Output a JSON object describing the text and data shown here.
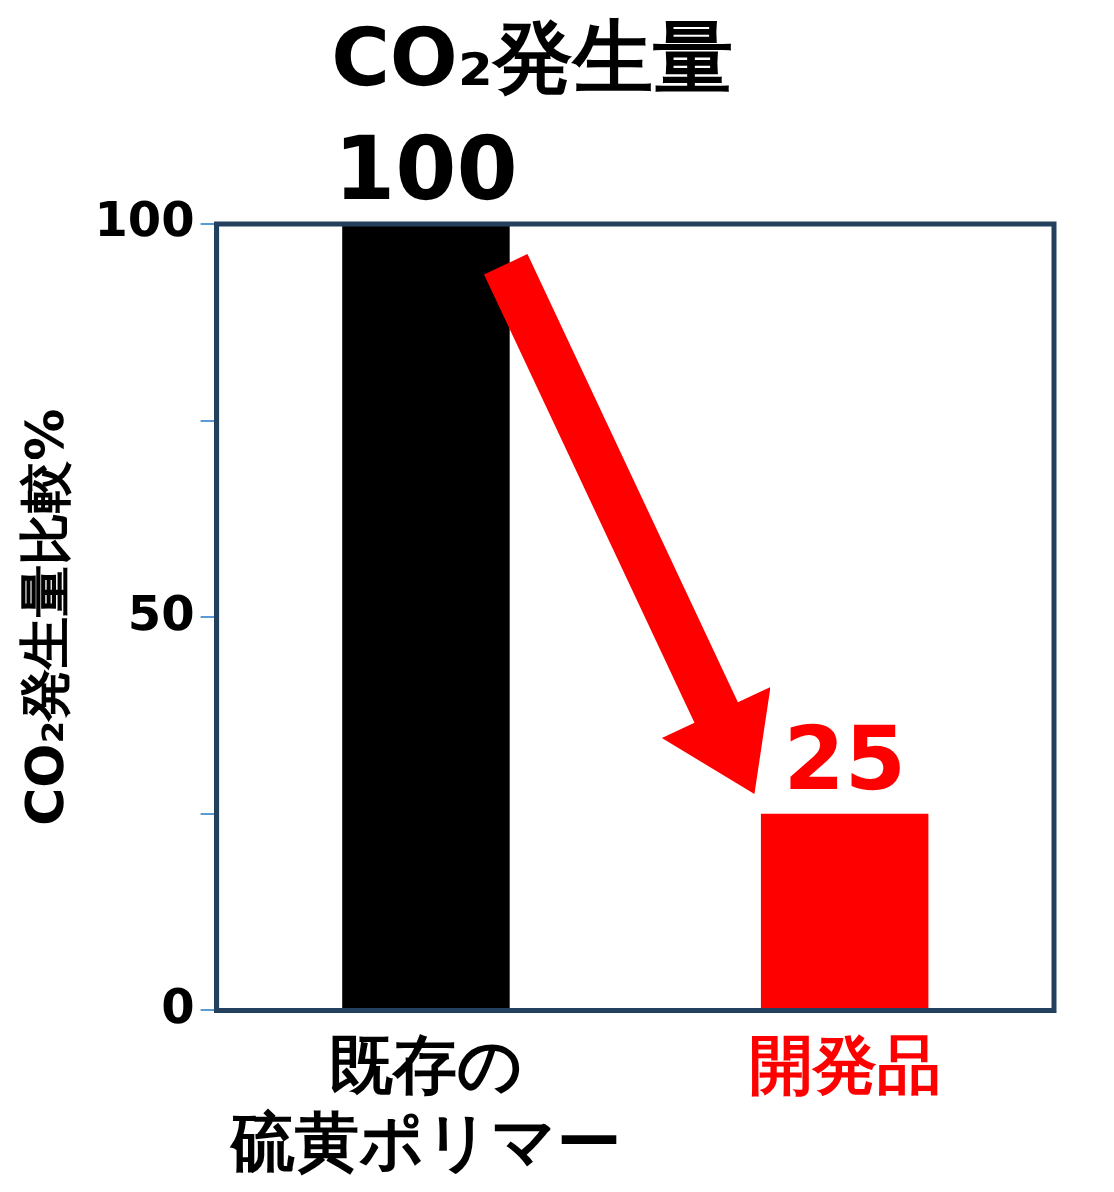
{
  "chart_data": {
    "type": "bar",
    "title": "CO₂発生量",
    "ylabel": "CO₂発生量比較%",
    "categories": [
      "既存の硫黄ポリマー",
      "開発品"
    ],
    "values": [
      100,
      25
    ],
    "colors": [
      "#000000",
      "#ff0000"
    ],
    "ylim": [
      0,
      100
    ],
    "yticks": [
      0,
      {
        "value": 25,
        "label": null
      },
      50,
      {
        "value": 75,
        "label": null
      },
      100
    ],
    "grid": false,
    "data_labels": true
  }
}
